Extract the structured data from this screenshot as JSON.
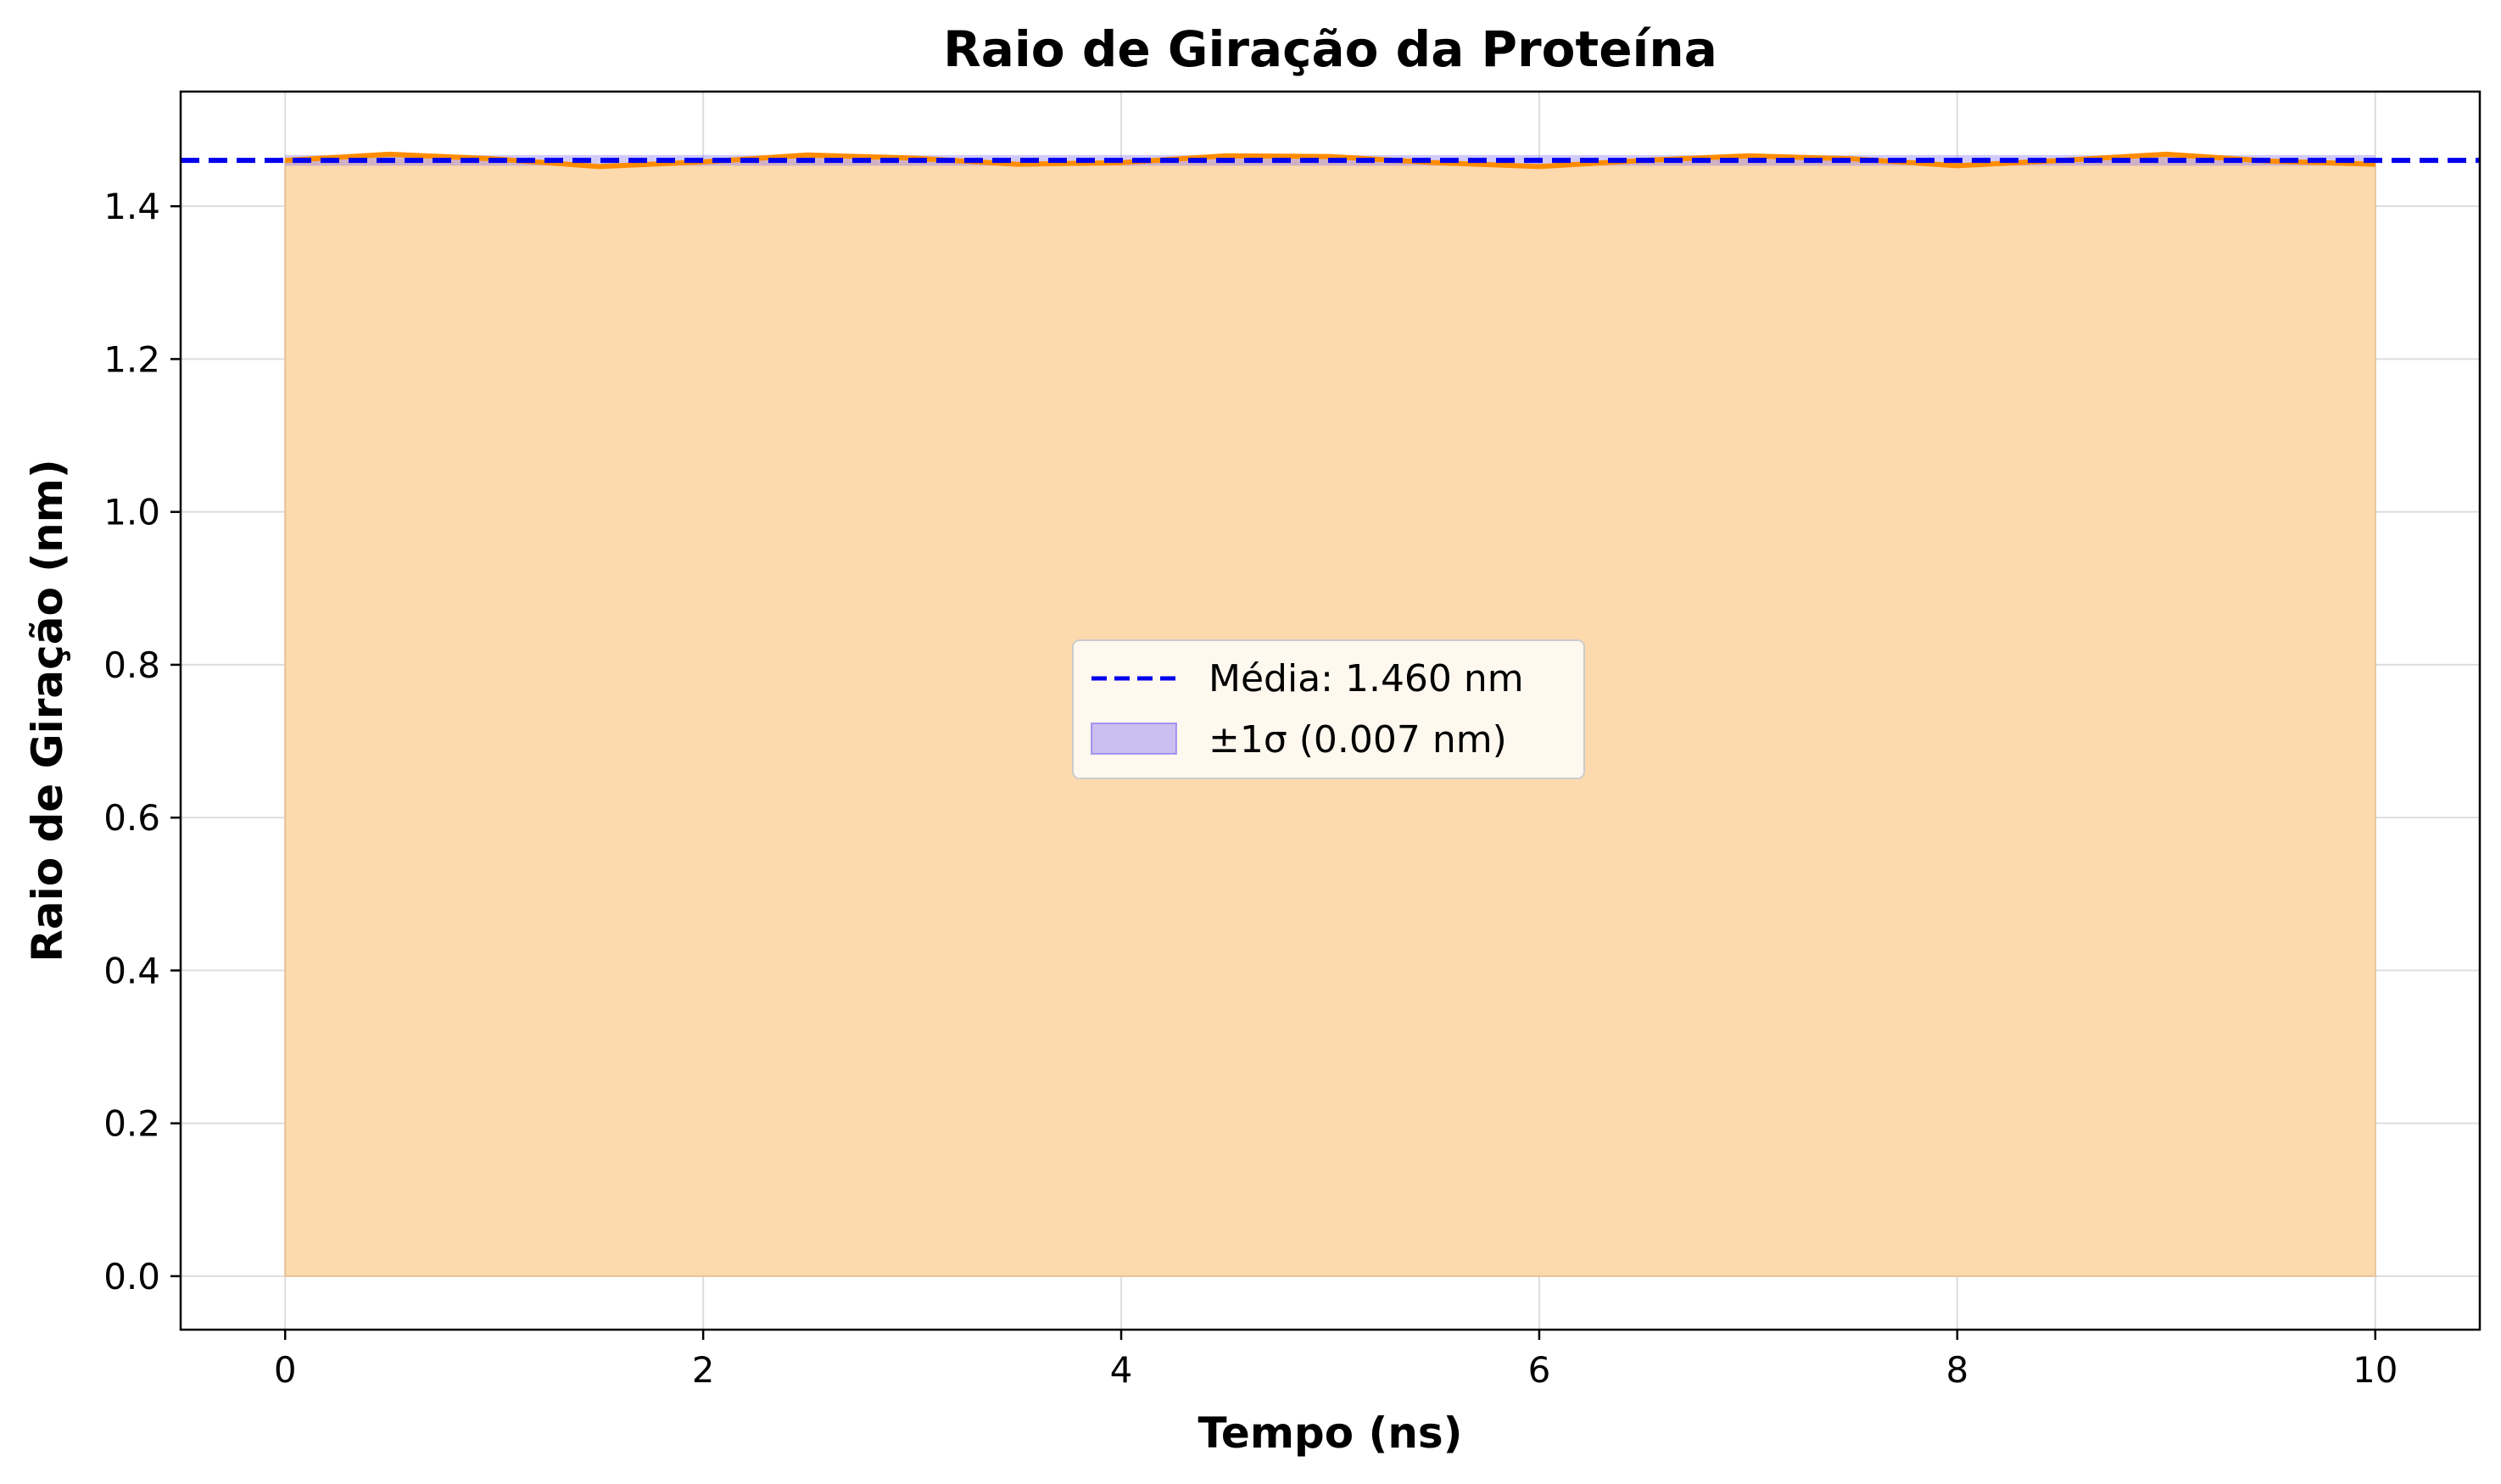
{
  "chart_data": {
    "type": "area",
    "title": "Raio de Giração da Proteína",
    "xlabel": "Tempo (ns)",
    "ylabel": "Raio de Giração (nm)",
    "xlim": [
      -0.5,
      10.5
    ],
    "ylim": [
      -0.07,
      1.55
    ],
    "x_ticks": [
      0,
      2,
      4,
      6,
      8,
      10
    ],
    "x_tick_labels": [
      "0",
      "2",
      "4",
      "6",
      "8",
      "10"
    ],
    "y_ticks": [
      0.0,
      0.2,
      0.4,
      0.6,
      0.8,
      1.0,
      1.2,
      1.4
    ],
    "y_tick_labels": [
      "0.0",
      "0.2",
      "0.4",
      "0.6",
      "0.8",
      "1.0",
      "1.2",
      "1.4"
    ],
    "grid": true,
    "legend_position": "center",
    "series": [
      {
        "x": [
          0.0,
          0.5,
          1.0,
          1.5,
          2.0,
          2.5,
          3.0,
          3.5,
          4.0,
          4.5,
          5.0,
          5.5,
          6.0,
          6.5,
          7.0,
          7.5,
          8.0,
          8.5,
          9.0,
          9.5,
          10.0
        ],
        "y": [
          1.46,
          1.468,
          1.462,
          1.452,
          1.458,
          1.467,
          1.463,
          1.455,
          1.457,
          1.466,
          1.465,
          1.457,
          1.452,
          1.46,
          1.466,
          1.462,
          1.453,
          1.46,
          1.468,
          1.459,
          1.455
        ],
        "color": "#ff8c00",
        "fill_color": "#fdd9ae"
      }
    ],
    "mean": {
      "value": 1.46,
      "label": "Média: 1.460 nm",
      "color": "#0000ee"
    },
    "std_band": {
      "lower": 1.453,
      "upper": 1.467,
      "label": "±1σ (0.007 nm)",
      "color": "#7b68ee"
    }
  }
}
